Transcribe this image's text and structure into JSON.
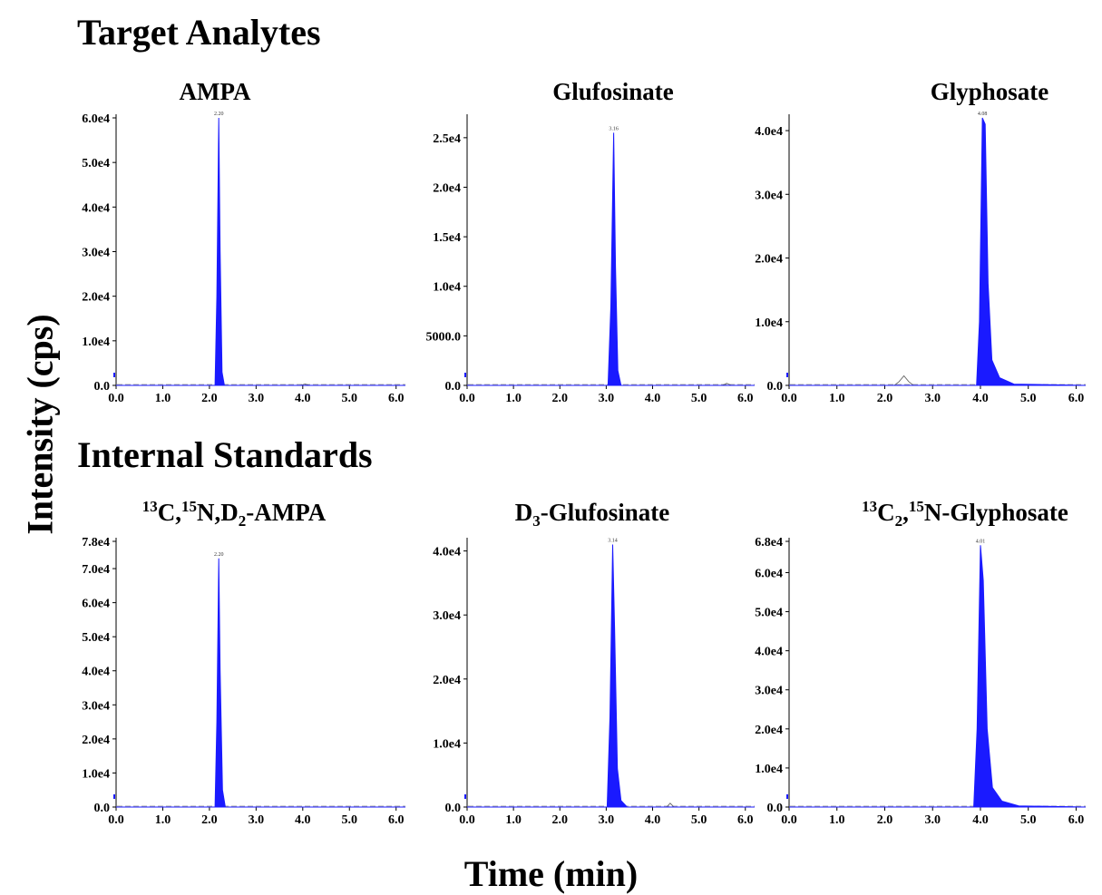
{
  "sections": {
    "top": "Target Analytes",
    "bottom": "Internal Standards"
  },
  "axes": {
    "ylabel": "Intensity (cps)",
    "xlabel": "Time (min)"
  },
  "colors": {
    "peak": "#1a1aff",
    "axis": "#000000",
    "baseline": "#555555"
  },
  "chart_data": [
    {
      "type": "line",
      "title": "AMPA",
      "peak_label": "2.20",
      "xlim": [
        0,
        6.2
      ],
      "ylim": [
        0,
        60000
      ],
      "x_ticks": [
        "0.0",
        "1.0",
        "2.0",
        "3.0",
        "4.0",
        "5.0",
        "6.0"
      ],
      "y_ticks": [
        {
          "value": 0,
          "label": "0.0"
        },
        {
          "value": 10000,
          "label": "1.0e4"
        },
        {
          "value": 20000,
          "label": "2.0e4"
        },
        {
          "value": 30000,
          "label": "3.0e4"
        },
        {
          "value": 40000,
          "label": "4.0e4"
        },
        {
          "value": 50000,
          "label": "5.0e4"
        },
        {
          "value": 60000,
          "label": "6.0e4"
        }
      ],
      "series": [
        {
          "x": [
            0,
            2.12,
            2.16,
            2.2,
            2.23,
            2.27,
            2.32,
            6.2
          ],
          "y": [
            0,
            0,
            20000,
            60000,
            30000,
            3000,
            0,
            0
          ]
        }
      ],
      "minor_peaks": [
        {
          "x": [
            3.95,
            4.05,
            4.15
          ],
          "y": [
            0,
            300,
            0
          ]
        }
      ]
    },
    {
      "type": "line",
      "title": "Glufosinate",
      "peak_label": "3.16",
      "xlim": [
        0,
        6.2
      ],
      "ylim": [
        0,
        27000
      ],
      "x_ticks": [
        "0.0",
        "1.0",
        "2.0",
        "3.0",
        "4.0",
        "5.0",
        "6.0"
      ],
      "y_ticks": [
        {
          "value": 0,
          "label": "0.0"
        },
        {
          "value": 5000,
          "label": "5000.0"
        },
        {
          "value": 10000,
          "label": "1.0e4"
        },
        {
          "value": 15000,
          "label": "1.5e4"
        },
        {
          "value": 20000,
          "label": "2.0e4"
        },
        {
          "value": 25000,
          "label": "2.5e4"
        }
      ],
      "series": [
        {
          "x": [
            0,
            3.04,
            3.1,
            3.16,
            3.2,
            3.25,
            3.32,
            6.2
          ],
          "y": [
            0,
            0,
            8000,
            25500,
            12000,
            1500,
            0,
            0
          ]
        }
      ],
      "minor_peaks": [
        {
          "x": [
            5.5,
            5.6,
            5.7
          ],
          "y": [
            0,
            200,
            0
          ]
        }
      ]
    },
    {
      "type": "line",
      "title": "Glyphosate",
      "peak_label": "4.08",
      "xlim": [
        0,
        6.2
      ],
      "ylim": [
        0,
        42000
      ],
      "x_ticks": [
        "0.0",
        "1.0",
        "2.0",
        "3.0",
        "4.0",
        "5.0",
        "6.0"
      ],
      "y_ticks": [
        {
          "value": 0,
          "label": "0.0"
        },
        {
          "value": 10000,
          "label": "1.0e4"
        },
        {
          "value": 20000,
          "label": "2.0e4"
        },
        {
          "value": 30000,
          "label": "3.0e4"
        },
        {
          "value": 40000,
          "label": "4.0e4"
        }
      ],
      "series": [
        {
          "x": [
            0,
            3.92,
            3.98,
            4.04,
            4.1,
            4.16,
            4.24,
            4.4,
            4.7,
            6.2
          ],
          "y": [
            0,
            0,
            10000,
            42000,
            41000,
            16000,
            4000,
            1200,
            200,
            0
          ]
        }
      ],
      "minor_peaks": [
        {
          "x": [
            2.2,
            2.3,
            2.4,
            2.5,
            2.6
          ],
          "y": [
            0,
            600,
            1500,
            600,
            0
          ]
        }
      ]
    },
    {
      "type": "line",
      "title": "13C,15N,D2-AMPA",
      "peak_label": "2.20",
      "xlim": [
        0,
        6.2
      ],
      "ylim": [
        0,
        78000
      ],
      "x_ticks": [
        "0.0",
        "1.0",
        "2.0",
        "3.0",
        "4.0",
        "5.0",
        "6.0"
      ],
      "y_ticks": [
        {
          "value": 0,
          "label": "0.0"
        },
        {
          "value": 10000,
          "label": "1.0e4"
        },
        {
          "value": 20000,
          "label": "2.0e4"
        },
        {
          "value": 30000,
          "label": "3.0e4"
        },
        {
          "value": 40000,
          "label": "4.0e4"
        },
        {
          "value": 50000,
          "label": "5.0e4"
        },
        {
          "value": 60000,
          "label": "6.0e4"
        },
        {
          "value": 70000,
          "label": "7.0e4"
        },
        {
          "value": 78000,
          "label": "7.8e4"
        }
      ],
      "series": [
        {
          "x": [
            0,
            2.12,
            2.16,
            2.2,
            2.23,
            2.28,
            2.34,
            6.2
          ],
          "y": [
            0,
            0,
            25000,
            73000,
            40000,
            5000,
            0,
            0
          ]
        }
      ],
      "minor_peaks": []
    },
    {
      "type": "line",
      "title": "D3-Glufosinate",
      "peak_label": "3.14",
      "xlim": [
        0,
        6.2
      ],
      "ylim": [
        0,
        41500
      ],
      "x_ticks": [
        "0.0",
        "1.0",
        "2.0",
        "3.0",
        "4.0",
        "5.0",
        "6.0"
      ],
      "y_ticks": [
        {
          "value": 0,
          "label": "0.0"
        },
        {
          "value": 10000,
          "label": "1.0e4"
        },
        {
          "value": 20000,
          "label": "2.0e4"
        },
        {
          "value": 30000,
          "label": "3.0e4"
        },
        {
          "value": 40000,
          "label": "4.0e4"
        }
      ],
      "series": [
        {
          "x": [
            0,
            3.02,
            3.08,
            3.14,
            3.18,
            3.24,
            3.32,
            3.45,
            6.2
          ],
          "y": [
            0,
            0,
            14000,
            41000,
            28000,
            6000,
            1000,
            0,
            0
          ]
        }
      ],
      "minor_peaks": [
        {
          "x": [
            4.3,
            4.38,
            4.46
          ],
          "y": [
            0,
            600,
            0
          ]
        }
      ]
    },
    {
      "type": "line",
      "title": "13C2,15N-Glyphosate",
      "peak_label": "4.01",
      "xlim": [
        0,
        6.2
      ],
      "ylim": [
        0,
        68000
      ],
      "x_ticks": [
        "0.0",
        "1.0",
        "2.0",
        "3.0",
        "4.0",
        "5.0",
        "6.0"
      ],
      "y_ticks": [
        {
          "value": 0,
          "label": "0.0"
        },
        {
          "value": 10000,
          "label": "1.0e4"
        },
        {
          "value": 20000,
          "label": "2.0e4"
        },
        {
          "value": 30000,
          "label": "3.0e4"
        },
        {
          "value": 40000,
          "label": "4.0e4"
        },
        {
          "value": 50000,
          "label": "5.0e4"
        },
        {
          "value": 60000,
          "label": "6.0e4"
        },
        {
          "value": 68000,
          "label": "6.8e4"
        }
      ],
      "series": [
        {
          "x": [
            0,
            3.86,
            3.93,
            4.0,
            4.06,
            4.14,
            4.25,
            4.45,
            4.8,
            6.2
          ],
          "y": [
            0,
            0,
            20000,
            67000,
            58000,
            20000,
            5000,
            1500,
            300,
            0
          ]
        }
      ],
      "minor_peaks": []
    }
  ]
}
